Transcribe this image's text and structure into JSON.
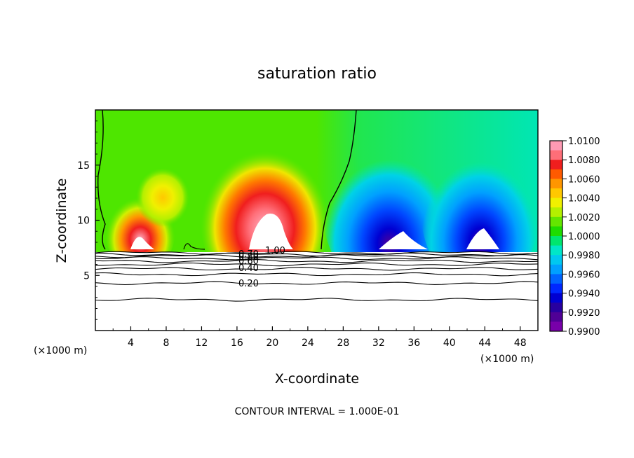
{
  "chart_data": {
    "type": "heatmap",
    "title": "saturation ratio",
    "xlabel": "X-coordinate",
    "ylabel": "Z-coordinate",
    "x_unit_left": "(×1000 m)",
    "x_unit_right": "(×1000 m)",
    "xlim": [
      0,
      50
    ],
    "ylim": [
      0,
      20
    ],
    "x_ticks": [
      "4",
      "8",
      "12",
      "16",
      "20",
      "24",
      "28",
      "32",
      "36",
      "40",
      "44",
      "48"
    ],
    "y_ticks": [
      "5",
      "10",
      "15"
    ],
    "colorbar": {
      "labels": [
        "1.0100",
        "1.0080",
        "1.0060",
        "1.0040",
        "1.0020",
        "1.0000",
        "0.9980",
        "0.9960",
        "0.9940",
        "0.9920",
        "0.9900"
      ],
      "colors": [
        "#ff9ab4",
        "#ff6e78",
        "#f01e1e",
        "#ff5a00",
        "#ff9600",
        "#ffc800",
        "#f0f000",
        "#b4f000",
        "#64e600",
        "#1edc00",
        "#00e66e",
        "#00e6c8",
        "#00c8f0",
        "#00a0ff",
        "#0064ff",
        "#0028ff",
        "#0000d2",
        "#2800a0",
        "#500096",
        "#7800aa"
      ]
    },
    "contour_labels": [
      "1.00",
      "0.80",
      "0.60",
      "0.40",
      "0.20",
      "0.70"
    ],
    "footer": "CONTOUR INTERVAL = 1.000E-01"
  }
}
